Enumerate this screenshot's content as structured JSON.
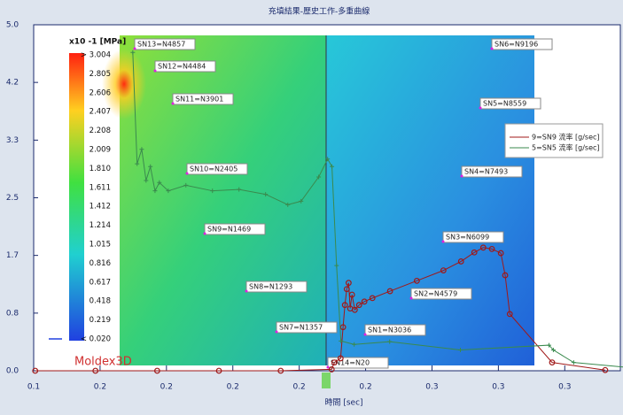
{
  "chart_data": {
    "type": "line",
    "title": "充填結果-歷史工作-多重曲線",
    "x_label": "時間 [sec]",
    "brand": "Moldex3D",
    "xlim": [
      0.14,
      0.33
    ],
    "xticks": [
      {
        "value": 0.14,
        "label": "0.1"
      },
      {
        "value": 0.1615,
        "label": "0.2"
      },
      {
        "value": 0.183,
        "label": "0.2"
      },
      {
        "value": 0.2045,
        "label": "0.2"
      },
      {
        "value": 0.226,
        "label": "0.2"
      },
      {
        "value": 0.2475,
        "label": "0.2"
      },
      {
        "value": 0.269,
        "label": "0.3"
      },
      {
        "value": 0.2905,
        "label": "0.3"
      },
      {
        "value": 0.312,
        "label": "0.3"
      }
    ],
    "ylim": [
      0,
      5
    ],
    "yticks": [
      {
        "value": 0,
        "label": "0.0"
      },
      {
        "value": 0.833,
        "label": "0.8"
      },
      {
        "value": 1.667,
        "label": "1.7"
      },
      {
        "value": 2.5,
        "label": "2.5"
      },
      {
        "value": 3.333,
        "label": "3.3"
      },
      {
        "value": 4.167,
        "label": "4.2"
      },
      {
        "value": 5,
        "label": "5.0"
      }
    ],
    "legend": "upper right",
    "series": [
      {
        "name": "9=SN9 流率 [g/sec]",
        "color": "#a01818",
        "marker": "circle",
        "x": [
          0.1405,
          0.16,
          0.18,
          0.2,
          0.22,
          0.2365,
          0.2374,
          0.2394,
          0.2402,
          0.2408,
          0.2414,
          0.242,
          0.2425,
          0.2431,
          0.244,
          0.2454,
          0.2471,
          0.2497,
          0.2554,
          0.2641,
          0.2727,
          0.2784,
          0.2827,
          0.2856,
          0.2884,
          0.2913,
          0.2927,
          0.2942,
          0.3079,
          0.3251
        ],
        "y": [
          0,
          0,
          0,
          0,
          0,
          0.02,
          0.12,
          0.18,
          0.63,
          0.95,
          1.18,
          1.27,
          0.9,
          1.1,
          0.88,
          0.95,
          1.0,
          1.05,
          1.15,
          1.3,
          1.45,
          1.58,
          1.71,
          1.78,
          1.76,
          1.7,
          1.38,
          0.82,
          0.12,
          0.01
        ]
      },
      {
        "name": "5=SN5 流率 [g/sec]",
        "color": "#3a8a4e",
        "marker": "plus",
        "x": [
          0.1721,
          0.1735,
          0.175,
          0.1764,
          0.1778,
          0.1793,
          0.1807,
          0.1836,
          0.1893,
          0.1979,
          0.2065,
          0.2151,
          0.2223,
          0.2266,
          0.2323,
          0.2352,
          0.2366,
          0.2381,
          0.2395,
          0.2438,
          0.2553,
          0.2782,
          0.3069,
          0.3083,
          0.3149,
          0.3321
        ],
        "y": [
          4.6,
          2.99,
          3.2,
          2.75,
          2.95,
          2.6,
          2.72,
          2.6,
          2.68,
          2.6,
          2.62,
          2.55,
          2.4,
          2.45,
          2.8,
          3.06,
          2.95,
          1.52,
          0.43,
          0.38,
          0.42,
          0.3,
          0.37,
          0.3,
          0.12,
          0.05
        ]
      }
    ],
    "colorbar": {
      "unit": "x10 -1  [MPa]",
      "labels": [
        "> 3.004",
        "2.805",
        "2.606",
        "2.407",
        "2.208",
        "2.009",
        "1.810",
        "1.611",
        "1.412",
        "1.214",
        "1.015",
        "0.816",
        "0.617",
        "0.418",
        "0.219",
        "< 0.020"
      ]
    },
    "annotations": [
      "SN13=N4857",
      "SN12=N4484",
      "SN11=N3901",
      "SN10=N2405",
      "SN9=N1469",
      "SN8=N1293",
      "SN7=N1357",
      "SN14=N20",
      "SN1=N3036",
      "SN2=N4579",
      "SN3=N6099",
      "SN4=N7493",
      "SN5=N8559",
      "SN6=N9196"
    ]
  }
}
